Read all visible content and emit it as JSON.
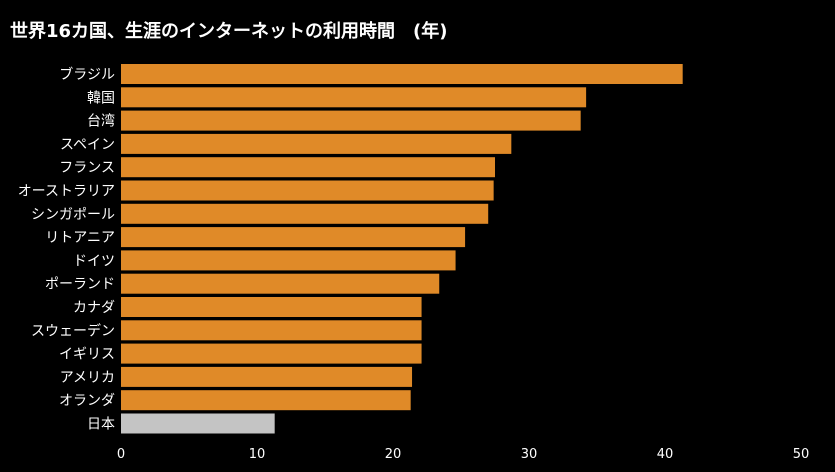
{
  "chart_data": {
    "type": "bar",
    "orientation": "horizontal",
    "title": "世界16カ国、生涯のインターネットの利用時間　(年)",
    "xlabel": "",
    "ylabel": "",
    "categories": [
      "ブラジル",
      "韓国",
      "台湾",
      "スペイン",
      "フランス",
      "オーストラリア",
      "シンガポール",
      "リトアニア",
      "ドイツ",
      "ポーランド",
      "カナダ",
      "スウェーデン",
      "イギリス",
      "アメリカ",
      "オランダ",
      "日本"
    ],
    "values": [
      41.3,
      34.2,
      33.8,
      28.7,
      27.5,
      27.4,
      27.0,
      25.3,
      24.6,
      23.4,
      22.1,
      22.1,
      22.1,
      21.4,
      21.3,
      11.3
    ],
    "xlim": [
      0,
      50
    ],
    "xticks": [
      0,
      10,
      20,
      30,
      40,
      50
    ],
    "grid": false,
    "legend": "none",
    "colors": {
      "bar": "#e08a28",
      "highlight_bar": "#c4c4c4",
      "background": "#000000",
      "text": "#ffffff"
    },
    "highlight_category": "日本"
  }
}
